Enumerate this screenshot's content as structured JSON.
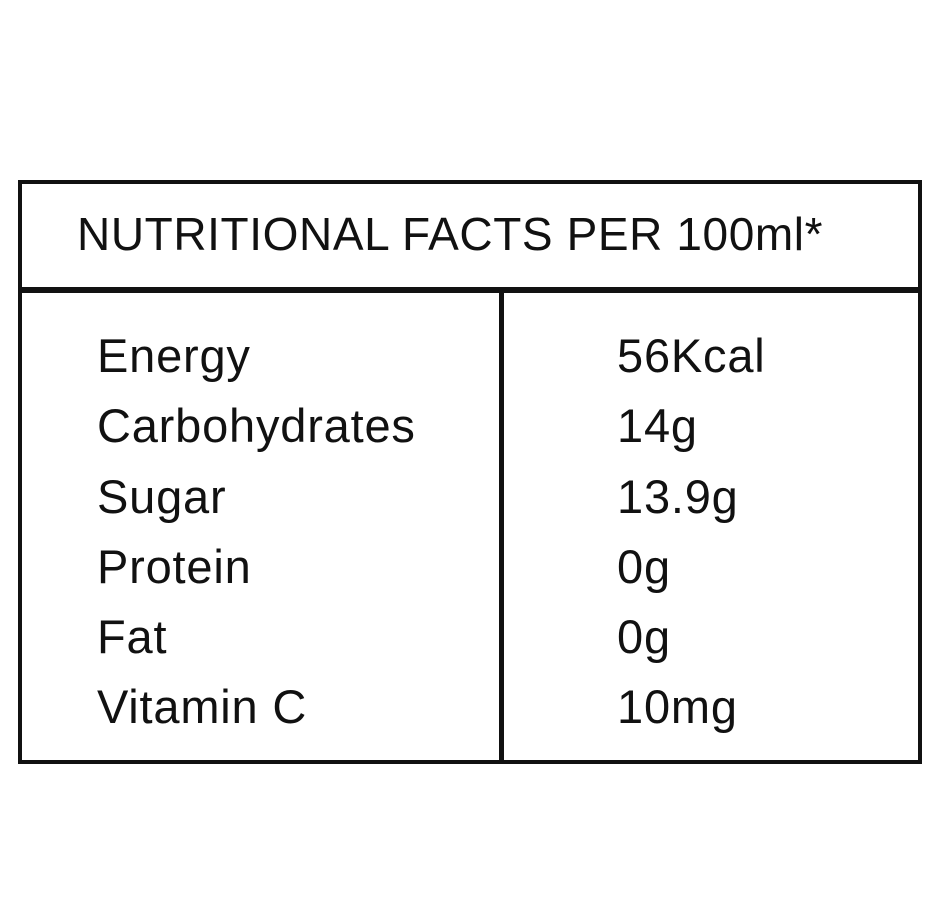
{
  "title": "NUTRITIONAL FACTS PER 100ml*",
  "rows": [
    {
      "label": "Energy",
      "value": "56Kcal"
    },
    {
      "label": "Carbohydrates",
      "value": "14g"
    },
    {
      "label": "Sugar",
      "value": "13.9g"
    },
    {
      "label": "Protein",
      "value": "0g"
    },
    {
      "label": "Fat",
      "value": "0g"
    },
    {
      "label": "Vitamin C",
      "value": "10mg"
    }
  ]
}
